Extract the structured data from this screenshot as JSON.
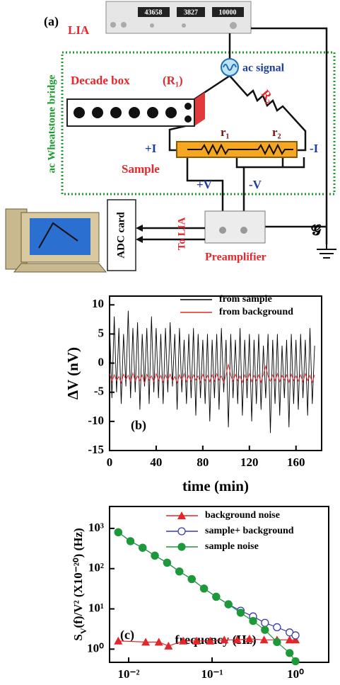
{
  "diagram": {
    "panel_label": "(a)",
    "instrument": "LIA",
    "displays": [
      "43658",
      "3827",
      "10000"
    ],
    "source": "ac signal",
    "decade_box": "Decade box",
    "decade_box_symbol": "(R₁)",
    "r_big": "R₂",
    "bridge": "ac Wheatstone bridge",
    "r1": "r₁",
    "r2": "r₂",
    "plus_i": "+I",
    "minus_i": "-I",
    "sample": "Sample",
    "plus_v": "+V",
    "minus_v": "-V",
    "adc": "ADC card",
    "to_lia": "To LIA",
    "preamp": "Preamplifier",
    "ground": "𝓖"
  },
  "chart_data": [
    {
      "type": "line",
      "panel_label": "(b)",
      "xlabel": "time (min)",
      "ylabel": "ΔV (nV)",
      "xlim": [
        0,
        182
      ],
      "ylim": [
        -15,
        11.5
      ],
      "xticks": [
        0,
        40,
        80,
        120,
        160
      ],
      "yticks": [
        -15,
        -10,
        -5,
        0,
        5,
        10
      ],
      "x": [
        0,
        2,
        4,
        6,
        8,
        10,
        12,
        14,
        16,
        18,
        20,
        22,
        24,
        26,
        28,
        30,
        32,
        34,
        36,
        38,
        40,
        42,
        44,
        46,
        48,
        50,
        52,
        54,
        56,
        58,
        60,
        62,
        64,
        66,
        68,
        70,
        72,
        74,
        76,
        78,
        80,
        82,
        84,
        86,
        88,
        90,
        92,
        94,
        96,
        98,
        100,
        102,
        104,
        106,
        108,
        110,
        112,
        114,
        116,
        118,
        120,
        122,
        124,
        126,
        128,
        130,
        132,
        134,
        136,
        138,
        140,
        142,
        144,
        146,
        148,
        150,
        152,
        154,
        156,
        158,
        160,
        162,
        164,
        166,
        168,
        170,
        172,
        174,
        176
      ],
      "series": [
        {
          "name": "from sample",
          "color": "#000000",
          "values": [
            7,
            -6,
            8,
            -5,
            6,
            -7,
            5,
            -4,
            9,
            -6,
            6,
            -5,
            7,
            -8,
            5,
            -4,
            6,
            -7,
            8,
            -5,
            6,
            -6,
            5,
            -7,
            6,
            -5,
            7,
            -4,
            5,
            -8,
            6,
            -5,
            4,
            -7,
            5,
            -6,
            6,
            -9,
            5,
            -6,
            4,
            -7,
            5,
            -10,
            4,
            -6,
            5,
            -8,
            6,
            -5,
            4,
            -11,
            5,
            -6,
            4,
            -7,
            6,
            -9,
            4,
            -6,
            5,
            -10,
            4,
            -7,
            5,
            -8,
            3,
            -6,
            5,
            -12,
            4,
            -7,
            5,
            -9,
            3,
            -6,
            4,
            -11,
            5,
            -7,
            4,
            -8,
            5,
            -6,
            4,
            -9,
            6,
            -7,
            3
          ]
        },
        {
          "name": "from background",
          "color": "#e8262b",
          "values": [
            -1.8,
            -3.2,
            -2.0,
            -3.0,
            -2.3,
            -3.4,
            -1.9,
            -2.8,
            -2.1,
            -3.3,
            -1.7,
            -3.1,
            -2.2,
            -3.0,
            -2.0,
            -3.5,
            -1.9,
            -2.9,
            -2.2,
            -3.2,
            -1.8,
            -3.0,
            -2.1,
            -3.3,
            -2.0,
            -2.9,
            -1.9,
            -3.1,
            -2.3,
            -3.4,
            -2.0,
            -3.0,
            -1.8,
            -3.2,
            -2.1,
            -3.1,
            -2.0,
            -2.9,
            -2.2,
            -3.3,
            -1.9,
            -3.0,
            -2.1,
            -3.2,
            -2.0,
            -3.1,
            -1.8,
            -2.9,
            -2.2,
            -3.4,
            -2.0,
            -0.2,
            -2.1,
            -3.1,
            -1.9,
            -3.0,
            -2.2,
            -3.3,
            -2.0,
            -2.9,
            -1.8,
            -3.2,
            -2.1,
            -3.0,
            -2.0,
            -3.3,
            -1.9,
            -0.5,
            -2.2,
            -3.1,
            -2.0,
            -3.0,
            -1.8,
            -3.2,
            -2.1,
            -2.9,
            -2.0,
            -3.3,
            -1.9,
            -3.0,
            -2.2,
            -3.1,
            -2.0,
            -3.2,
            -1.8,
            -3.0,
            -2.1,
            -3.3,
            -2.0
          ]
        }
      ]
    },
    {
      "type": "line",
      "panel_label": "(c)",
      "xlabel": "frequency (Hz)",
      "ylabel": [
        "S",
        "V",
        "(f)/V² (X10⁻²⁰) (Hz)"
      ],
      "xscale": "log",
      "yscale": "log",
      "xlim": [
        0.0059,
        2.5
      ],
      "ylim": [
        0.47,
        3500
      ],
      "xticks": [
        {
          "value": 0.01,
          "label": "10⁻²"
        },
        {
          "value": 0.1,
          "label": "10⁻¹"
        },
        {
          "value": 1,
          "label": "10⁰"
        }
      ],
      "yticks": [
        {
          "value": 1,
          "label": "10⁰"
        },
        {
          "value": 10,
          "label": "10¹"
        },
        {
          "value": 100,
          "label": "10²"
        },
        {
          "value": 1000,
          "label": "10³"
        }
      ],
      "series": [
        {
          "name": "background noise",
          "color": "#e3262a",
          "marker": "triangle",
          "x": [
            0.0075,
            0.016,
            0.023,
            0.03,
            0.045,
            0.065,
            0.095,
            0.14,
            0.2,
            0.28,
            0.42,
            0.6,
            0.85,
            1.0
          ],
          "values": [
            1.6,
            1.5,
            1.5,
            1.2,
            1.6,
            1.6,
            1.6,
            1.7,
            1.7,
            1.8,
            1.7,
            1.7,
            1.7,
            1.7
          ]
        },
        {
          "name": "sample+ background",
          "color": "#3a3ab0",
          "marker": "circle-open",
          "x": [
            0.0075,
            0.0105,
            0.0147,
            0.0206,
            0.0289,
            0.0405,
            0.057,
            0.08,
            0.112,
            0.157,
            0.22,
            0.31,
            0.43,
            0.6,
            0.85,
            1.0
          ],
          "values": [
            800,
            480,
            330,
            210,
            140,
            85,
            55,
            32,
            20,
            13,
            9,
            6.5,
            4.5,
            3.5,
            2.6,
            2.2
          ]
        },
        {
          "name": "sample noise",
          "color": "#1c9a3a",
          "marker": "circle",
          "x": [
            0.0075,
            0.0105,
            0.0147,
            0.0206,
            0.0289,
            0.0405,
            0.057,
            0.08,
            0.112,
            0.157,
            0.22,
            0.31,
            0.43,
            0.6,
            0.85,
            1.0
          ],
          "values": [
            800,
            480,
            330,
            210,
            140,
            85,
            55,
            32,
            20,
            13,
            8,
            5,
            3,
            1.5,
            0.8,
            0.5
          ]
        }
      ]
    }
  ]
}
